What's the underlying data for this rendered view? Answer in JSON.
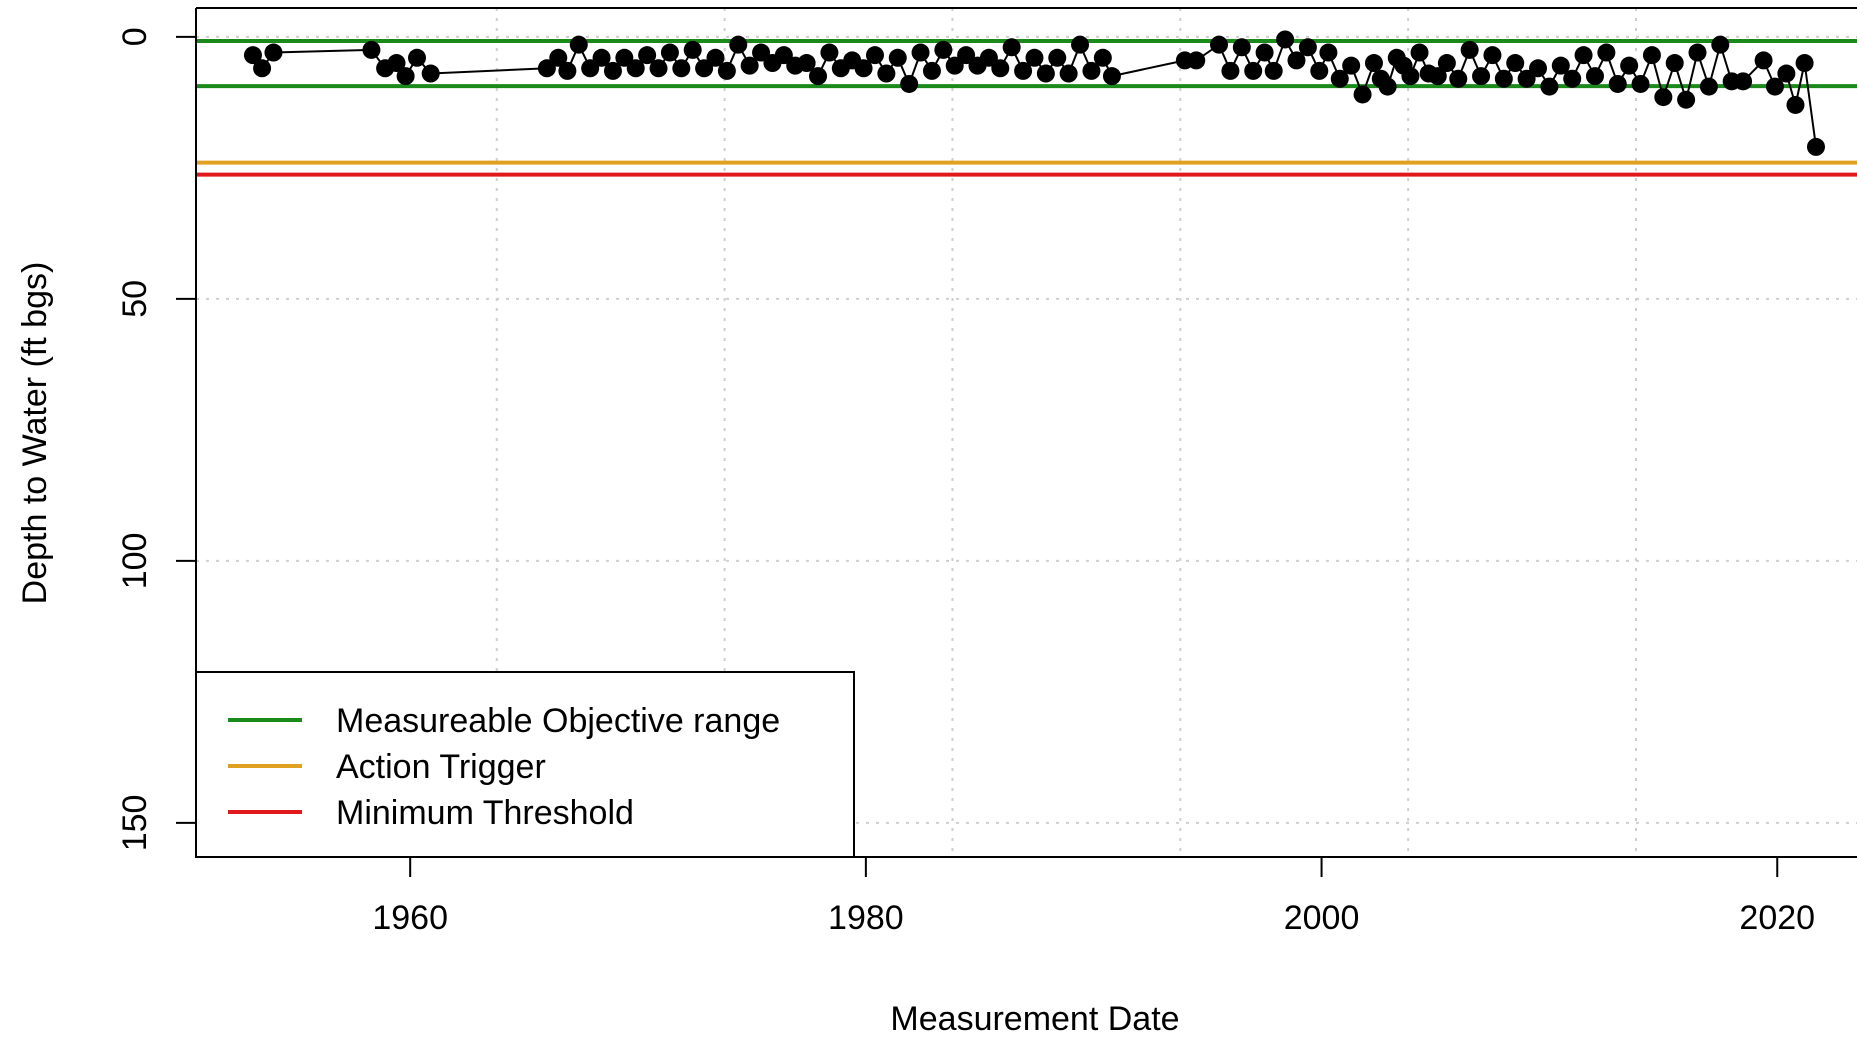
{
  "chart_data": {
    "type": "line",
    "xlabel": "Measurement Date",
    "ylabel": "Depth to Water (ft bgs)",
    "x_ticks": [
      1960,
      1980,
      2000,
      2020
    ],
    "y_ticks": [
      0,
      50,
      100,
      150
    ],
    "xlim": [
      1950.6,
      2023.5
    ],
    "ylim_inverted": [
      -5.5,
      156.5
    ],
    "grid": true,
    "legend_position": "bottom-left",
    "colors": {
      "measureable_objective": "#1a8a1a",
      "action_trigger": "#e0a020",
      "minimum_threshold": "#e01a1a",
      "series": "#000000"
    },
    "reference_lines": [
      {
        "legend_label": "Measureable Objective range",
        "values": [
          0.8,
          9.4
        ],
        "color": "#1a8a1a"
      },
      {
        "legend_label": "Action Trigger",
        "values": [
          24
        ],
        "color": "#e0a020"
      },
      {
        "legend_label": "Minimum Threshold",
        "values": [
          26.3
        ],
        "color": "#e01a1a"
      }
    ],
    "series": [
      {
        "points": [
          [
            1953.1,
            3.5
          ],
          [
            1953.5,
            6
          ],
          [
            1954.0,
            3
          ],
          [
            1958.3,
            2.5
          ],
          [
            1958.9,
            6
          ],
          [
            1959.4,
            5
          ],
          [
            1959.8,
            7.5
          ],
          [
            1960.3,
            4
          ],
          [
            1960.9,
            7
          ],
          [
            1966.0,
            6
          ],
          [
            1966.5,
            4
          ],
          [
            1966.9,
            6.5
          ],
          [
            1967.4,
            1.5
          ],
          [
            1967.9,
            6
          ],
          [
            1968.4,
            4
          ],
          [
            1968.9,
            6.5
          ],
          [
            1969.4,
            4
          ],
          [
            1969.9,
            6
          ],
          [
            1970.4,
            3.5
          ],
          [
            1970.9,
            6
          ],
          [
            1971.4,
            3
          ],
          [
            1971.9,
            6
          ],
          [
            1972.4,
            2.5
          ],
          [
            1972.9,
            6
          ],
          [
            1973.4,
            4
          ],
          [
            1973.9,
            6.5
          ],
          [
            1974.4,
            1.5
          ],
          [
            1974.9,
            5.5
          ],
          [
            1975.4,
            3
          ],
          [
            1975.9,
            5
          ],
          [
            1976.4,
            3.5
          ],
          [
            1976.9,
            5.5
          ],
          [
            1977.4,
            5
          ],
          [
            1977.9,
            7.5
          ],
          [
            1978.4,
            3
          ],
          [
            1978.9,
            6
          ],
          [
            1979.4,
            4.5
          ],
          [
            1979.9,
            6
          ],
          [
            1980.4,
            3.5
          ],
          [
            1980.9,
            7
          ],
          [
            1981.4,
            4
          ],
          [
            1981.9,
            9
          ],
          [
            1982.4,
            3
          ],
          [
            1982.9,
            6.5
          ],
          [
            1983.4,
            2.5
          ],
          [
            1983.9,
            5.5
          ],
          [
            1984.4,
            3.5
          ],
          [
            1984.9,
            5.5
          ],
          [
            1985.4,
            4
          ],
          [
            1985.9,
            6
          ],
          [
            1986.4,
            2
          ],
          [
            1986.9,
            6.5
          ],
          [
            1987.4,
            4
          ],
          [
            1987.9,
            7
          ],
          [
            1988.4,
            4
          ],
          [
            1988.9,
            7
          ],
          [
            1989.4,
            1.5
          ],
          [
            1989.9,
            6.5
          ],
          [
            1990.4,
            4
          ],
          [
            1990.8,
            7.5
          ],
          [
            1994.0,
            4.5
          ],
          [
            1994.5,
            4.5
          ],
          [
            1995.5,
            1.5
          ],
          [
            1996.0,
            6.5
          ],
          [
            1996.5,
            2
          ],
          [
            1997.0,
            6.5
          ],
          [
            1997.5,
            3
          ],
          [
            1997.9,
            6.5
          ],
          [
            1998.4,
            0.5
          ],
          [
            1998.9,
            4.5
          ],
          [
            1999.4,
            2
          ],
          [
            1999.9,
            6.5
          ],
          [
            2000.3,
            3
          ],
          [
            2000.8,
            8
          ],
          [
            2001.3,
            5.5
          ],
          [
            2001.8,
            11
          ],
          [
            2002.3,
            5
          ],
          [
            2002.6,
            8
          ],
          [
            2002.9,
            9.5
          ],
          [
            2003.3,
            4
          ],
          [
            2003.6,
            5.5
          ],
          [
            2003.9,
            7.5
          ],
          [
            2004.3,
            3
          ],
          [
            2004.7,
            7
          ],
          [
            2005.1,
            7.5
          ],
          [
            2005.5,
            5
          ],
          [
            2006.0,
            8
          ],
          [
            2006.5,
            2.5
          ],
          [
            2007.0,
            7.5
          ],
          [
            2007.5,
            3.5
          ],
          [
            2008.0,
            8
          ],
          [
            2008.5,
            5
          ],
          [
            2009.0,
            8
          ],
          [
            2009.5,
            6
          ],
          [
            2010.0,
            9.5
          ],
          [
            2010.5,
            5.5
          ],
          [
            2011.0,
            8
          ],
          [
            2011.5,
            3.5
          ],
          [
            2012.0,
            7.5
          ],
          [
            2012.5,
            3
          ],
          [
            2013.0,
            9
          ],
          [
            2013.5,
            5.5
          ],
          [
            2014.0,
            9
          ],
          [
            2014.5,
            3.5
          ],
          [
            2015.0,
            11.5
          ],
          [
            2015.5,
            5
          ],
          [
            2016.0,
            12
          ],
          [
            2016.5,
            3
          ],
          [
            2017.0,
            9.5
          ],
          [
            2017.5,
            1.5
          ],
          [
            2018.0,
            8.5
          ],
          [
            2018.5,
            8.5
          ],
          [
            2019.4,
            4.5
          ],
          [
            2019.9,
            9.5
          ],
          [
            2020.4,
            7
          ],
          [
            2020.8,
            13
          ],
          [
            2021.2,
            5
          ],
          [
            2021.7,
            21
          ]
        ]
      }
    ]
  }
}
